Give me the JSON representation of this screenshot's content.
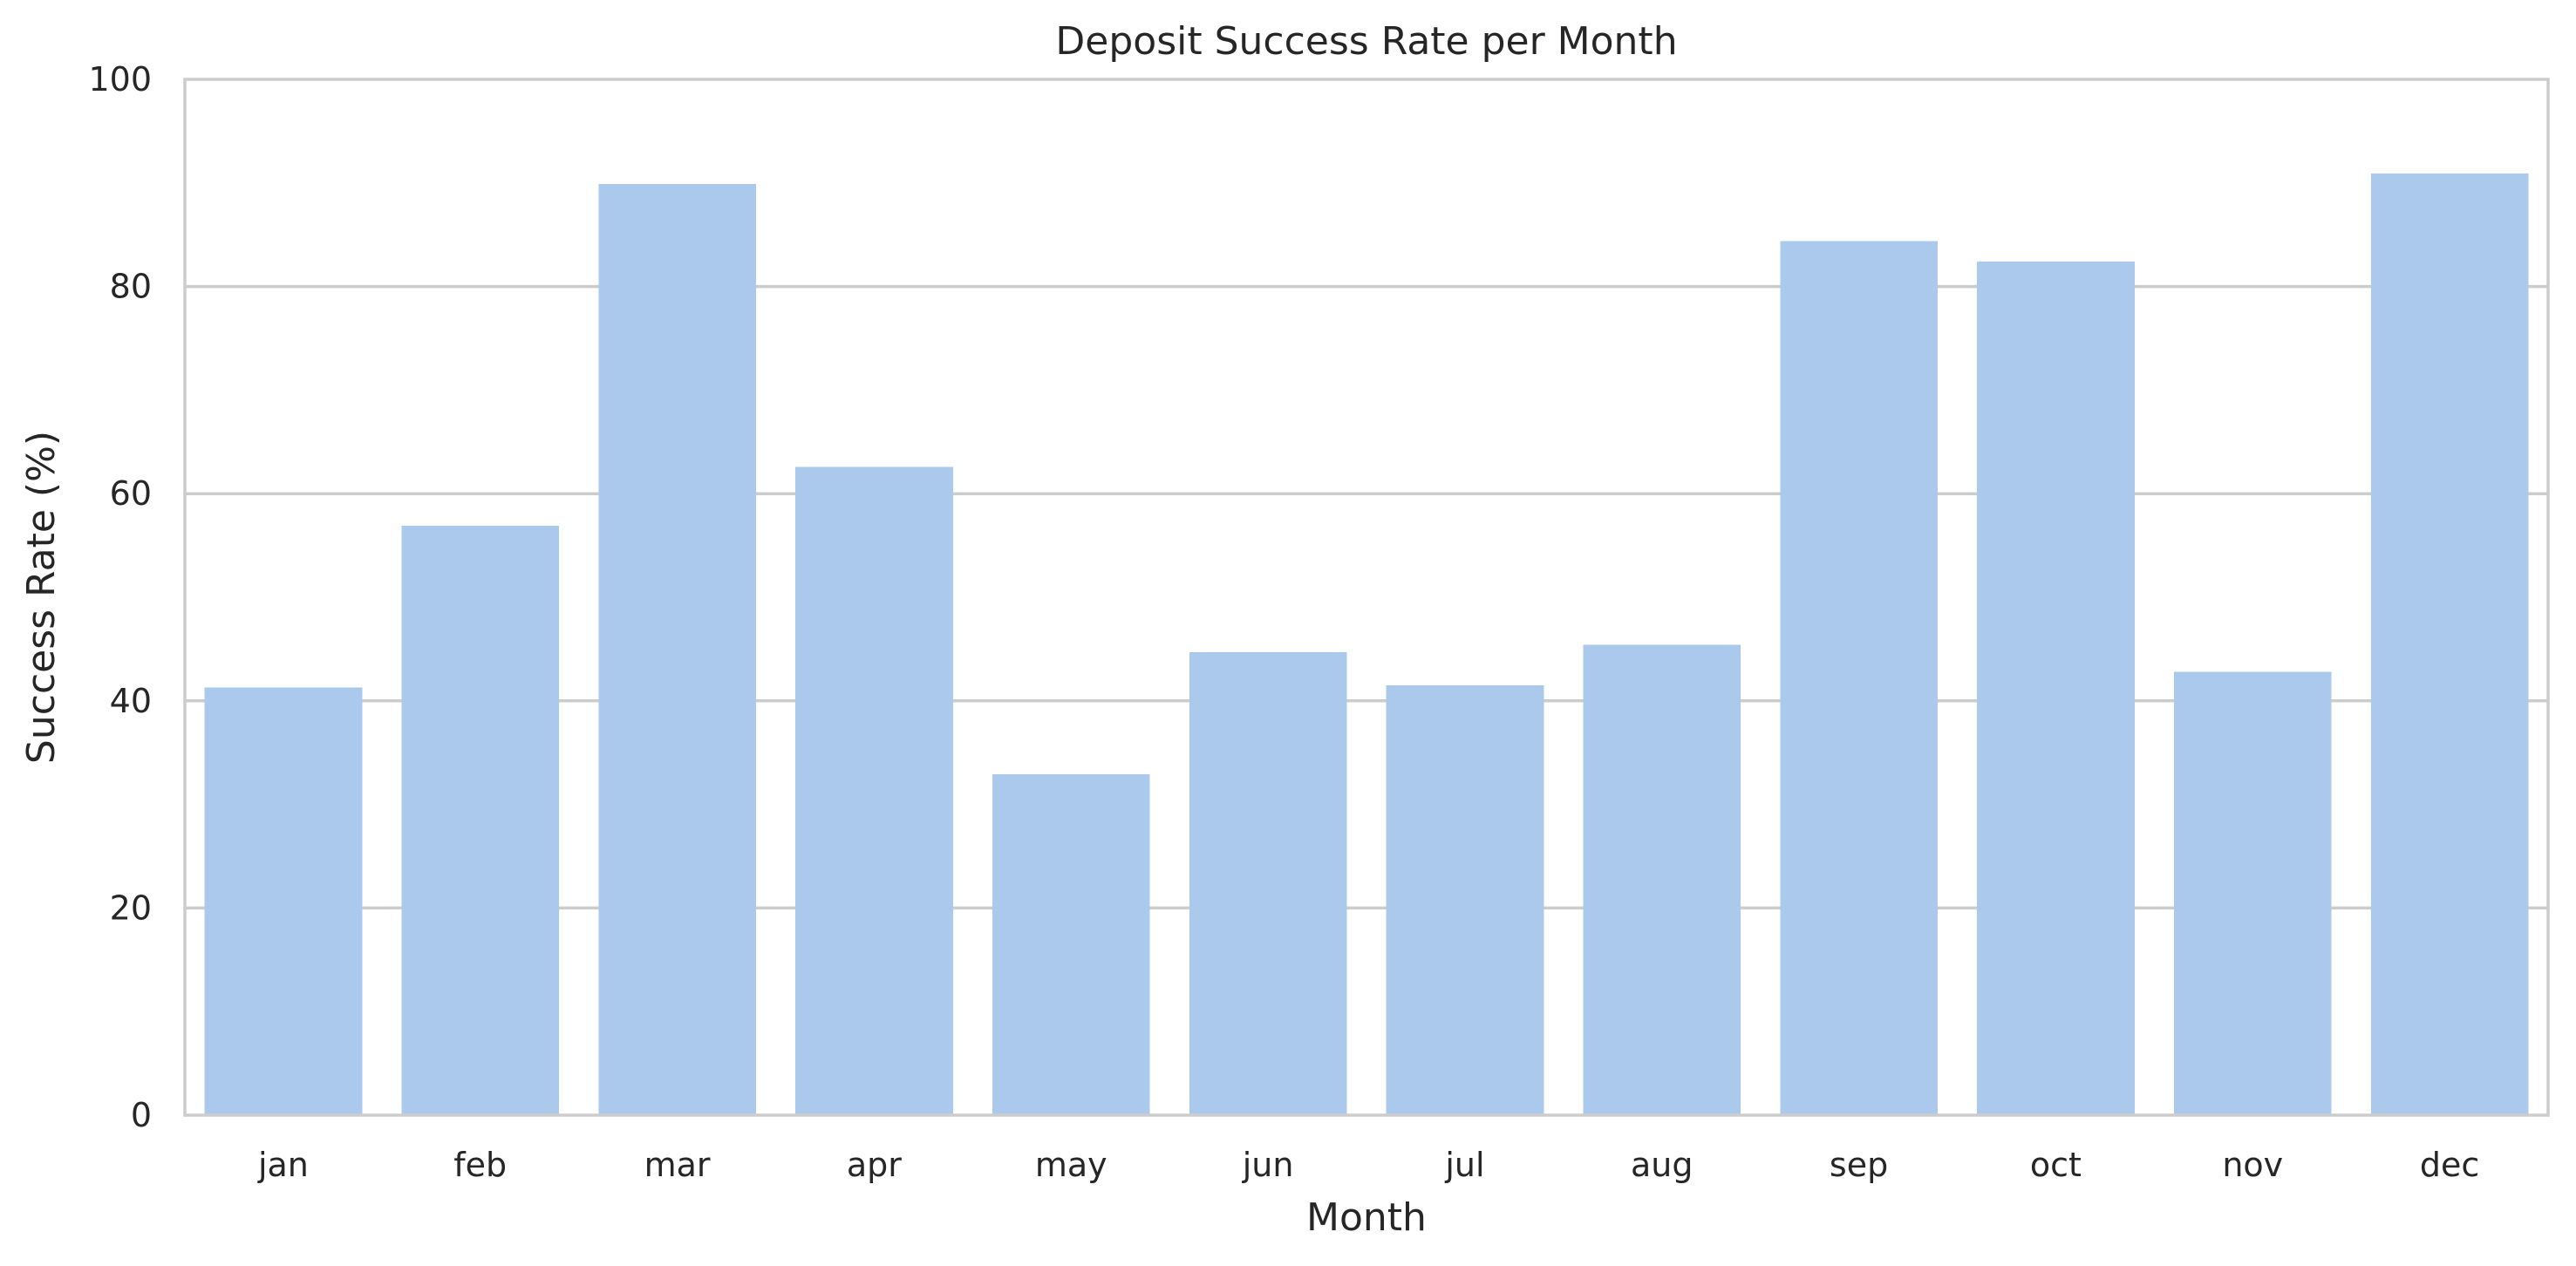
{
  "chart_data": {
    "type": "bar",
    "title": "Deposit Success Rate per Month",
    "xlabel": "Month",
    "ylabel": "Success Rate (%)",
    "categories": [
      "jan",
      "feb",
      "mar",
      "apr",
      "may",
      "jun",
      "jul",
      "aug",
      "sep",
      "oct",
      "nov",
      "dec"
    ],
    "values": [
      41.3,
      56.9,
      89.9,
      62.6,
      32.9,
      44.7,
      41.5,
      45.4,
      84.4,
      82.4,
      42.8,
      90.9
    ],
    "ylim": [
      0,
      100
    ],
    "yticks": [
      "0",
      "20",
      "40",
      "60",
      "80",
      "100"
    ],
    "grid": "horizontal",
    "bar_color": "#abc9ed",
    "legend": "none"
  }
}
